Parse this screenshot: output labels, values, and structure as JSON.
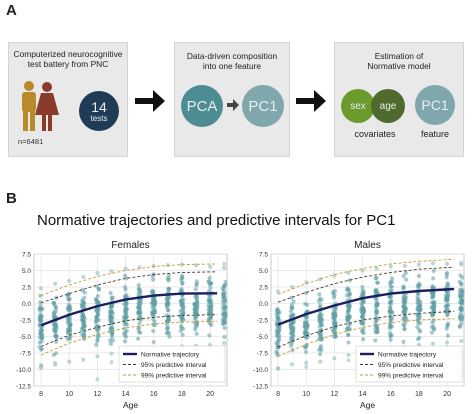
{
  "panel_a": {
    "label": "A",
    "box1": {
      "title_line1": "Computerized neurocognitive",
      "title_line2": "test battery from PNC",
      "sample_size": "n=6481",
      "tests_count": "14",
      "tests_label": "tests"
    },
    "box2": {
      "title_line1": "Data-driven composition",
      "title_line2": "into one feature",
      "pca_label": "PCA",
      "pc1_label": "PC1"
    },
    "box3": {
      "title_line1": "Estimation of",
      "title_line2": "Normative model",
      "sex_label": "sex",
      "age_label": "age",
      "pc1_label": "PC1",
      "covariates_label": "covariates",
      "feature_label": "feature"
    },
    "colors": {
      "box_bg": "#e9e9e9",
      "dark_circle": "#1f3b56",
      "teal_circle": "#4e8c94",
      "sex_circle": "#6c9a2c",
      "age_circle": "#4f6a2c",
      "pc1_circle": "#7fa7ac",
      "figure_gold": "#b98a2a",
      "figure_brown": "#8a3b2a",
      "arrow": "#111111"
    }
  },
  "panel_b": {
    "label": "B",
    "title": "Normative trajectories and predictive intervals for PC1",
    "legend": {
      "normative": "Normative trajectory",
      "pi95": "95% predictive interval",
      "pi99": "99% predictive interval"
    }
  },
  "chart_data": [
    {
      "type": "scatter",
      "title": "Females",
      "xlabel": "Age",
      "ylabel": "",
      "xlim": [
        7.5,
        21.2
      ],
      "ylim": [
        -12.5,
        7.5
      ],
      "xticks": [
        8,
        10,
        12,
        14,
        16,
        18,
        20
      ],
      "yticks": [
        -12.5,
        -10.0,
        -7.5,
        -5.0,
        -2.5,
        0.0,
        2.5,
        5.0,
        7.5
      ],
      "grid": true,
      "legend_position": "bottom-right",
      "scatter_columns": [
        {
          "x": 8,
          "ymin": -9.6,
          "ymax": 2.3
        },
        {
          "x": 9,
          "ymin": -9.0,
          "ymax": 3.0
        },
        {
          "x": 10,
          "ymin": -8.8,
          "ymax": 3.4
        },
        {
          "x": 11,
          "ymin": -8.5,
          "ymax": 4.0
        },
        {
          "x": 12,
          "ymin": -8.0,
          "ymax": 4.6
        },
        {
          "x": 13,
          "ymin": -7.6,
          "ymax": 4.9
        },
        {
          "x": 14,
          "ymin": -7.3,
          "ymax": 5.3
        },
        {
          "x": 15,
          "ymin": -7.0,
          "ymax": 5.5
        },
        {
          "x": 16,
          "ymin": -6.8,
          "ymax": 5.7
        },
        {
          "x": 17,
          "ymin": -6.7,
          "ymax": 5.8
        },
        {
          "x": 18,
          "ymin": -6.5,
          "ymax": 5.9
        },
        {
          "x": 19,
          "ymin": -6.4,
          "ymax": 5.8
        },
        {
          "x": 20,
          "ymin": -6.3,
          "ymax": 5.6
        },
        {
          "x": 21,
          "ymin": -6.0,
          "ymax": 5.4
        }
      ],
      "outliers": [
        [
          8,
          -9.8
        ],
        [
          9,
          -9.3
        ],
        [
          12,
          -11.5
        ],
        [
          13,
          -8.9
        ],
        [
          19,
          -6.9
        ],
        [
          20,
          -6.8
        ],
        [
          21,
          6.0
        ]
      ],
      "series": [
        {
          "name": "Normative trajectory",
          "x": [
            8,
            10,
            12,
            14,
            16,
            18,
            20.5
          ],
          "y": [
            -3.3,
            -1.7,
            -0.4,
            0.6,
            1.2,
            1.5,
            1.55
          ]
        },
        {
          "name": "95% predictive interval",
          "x": [
            8,
            10,
            12,
            14,
            16,
            18,
            20.5
          ],
          "y": [
            -6.5,
            -4.8,
            -3.6,
            -2.6,
            -2.1,
            -1.8,
            -1.7
          ]
        },
        {
          "name": "95% predictive interval",
          "x": [
            8,
            10,
            12,
            14,
            16,
            18,
            20.5
          ],
          "y": [
            0.1,
            1.5,
            2.8,
            3.8,
            4.4,
            4.7,
            4.8
          ]
        },
        {
          "name": "99% predictive interval",
          "x": [
            8,
            10,
            12,
            14,
            16,
            18,
            20.5
          ],
          "y": [
            -7.8,
            -6.0,
            -4.7,
            -3.7,
            -3.1,
            -2.8,
            -2.7
          ]
        },
        {
          "name": "99% predictive interval",
          "x": [
            8,
            10,
            12,
            14,
            16,
            18,
            20.5
          ],
          "y": [
            1.2,
            2.8,
            4.1,
            5.0,
            5.6,
            5.9,
            6.0
          ]
        }
      ]
    },
    {
      "type": "scatter",
      "title": "Males",
      "xlabel": "Age",
      "ylabel": "",
      "xlim": [
        7.5,
        21.2
      ],
      "ylim": [
        -12.5,
        7.5
      ],
      "xticks": [
        8,
        10,
        12,
        14,
        16,
        18,
        20
      ],
      "yticks": [
        -12.5,
        -10.0,
        -7.5,
        -5.0,
        -2.5,
        0.0,
        2.5,
        5.0,
        7.5
      ],
      "grid": true,
      "legend_position": "bottom-right",
      "scatter_columns": [
        {
          "x": 8,
          "ymin": -9.8,
          "ymax": 1.8
        },
        {
          "x": 9,
          "ymin": -9.2,
          "ymax": 2.5
        },
        {
          "x": 10,
          "ymin": -9.0,
          "ymax": 3.2
        },
        {
          "x": 11,
          "ymin": -8.8,
          "ymax": 3.7
        },
        {
          "x": 12,
          "ymin": -8.3,
          "ymax": 4.2
        },
        {
          "x": 13,
          "ymin": -7.8,
          "ymax": 4.6
        },
        {
          "x": 14,
          "ymin": -7.4,
          "ymax": 5.0
        },
        {
          "x": 15,
          "ymin": -7.1,
          "ymax": 5.3
        },
        {
          "x": 16,
          "ymin": -6.8,
          "ymax": 5.6
        },
        {
          "x": 17,
          "ymin": -6.6,
          "ymax": 5.7
        },
        {
          "x": 18,
          "ymin": -6.3,
          "ymax": 5.9
        },
        {
          "x": 19,
          "ymin": -6.1,
          "ymax": 6.1
        },
        {
          "x": 20,
          "ymin": -5.9,
          "ymax": 6.0
        },
        {
          "x": 21,
          "ymin": -5.7,
          "ymax": 5.9
        }
      ],
      "outliers": [
        [
          8,
          -9.9
        ],
        [
          10,
          -9.6
        ],
        [
          13,
          -8.6
        ],
        [
          16,
          -7.9
        ],
        [
          20,
          -6.6
        ],
        [
          21,
          6.2
        ]
      ],
      "series": [
        {
          "name": "Normative trajectory",
          "x": [
            8,
            10,
            12,
            14,
            16,
            18,
            20.5
          ],
          "y": [
            -3.2,
            -1.6,
            -0.3,
            0.8,
            1.5,
            1.9,
            2.2
          ]
        },
        {
          "name": "95% predictive interval",
          "x": [
            8,
            10,
            12,
            14,
            16,
            18,
            20.5
          ],
          "y": [
            -6.6,
            -4.9,
            -3.5,
            -2.5,
            -1.9,
            -1.5,
            -1.2
          ]
        },
        {
          "name": "95% predictive interval",
          "x": [
            8,
            10,
            12,
            14,
            16,
            18,
            20.5
          ],
          "y": [
            0.2,
            1.7,
            3.0,
            4.0,
            4.7,
            5.2,
            5.5
          ]
        },
        {
          "name": "99% predictive interval",
          "x": [
            8,
            10,
            12,
            14,
            16,
            18,
            20.5
          ],
          "y": [
            -8.0,
            -6.2,
            -4.7,
            -3.6,
            -2.9,
            -2.5,
            -2.3
          ]
        },
        {
          "name": "99% predictive interval",
          "x": [
            8,
            10,
            12,
            14,
            16,
            18,
            20.5
          ],
          "y": [
            1.4,
            3.0,
            4.4,
            5.3,
            6.0,
            6.4,
            6.7
          ]
        }
      ]
    }
  ]
}
